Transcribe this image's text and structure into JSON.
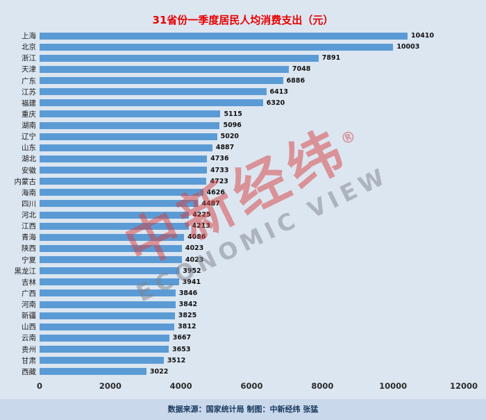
{
  "chart_data": {
    "type": "bar",
    "orientation": "horizontal",
    "title": "31省份一季度居民人均消费支出（元）",
    "categories": [
      "上海",
      "北京",
      "浙江",
      "天津",
      "广东",
      "江苏",
      "福建",
      "重庆",
      "湖南",
      "辽宁",
      "山东",
      "湖北",
      "安徽",
      "内蒙古",
      "海南",
      "四川",
      "河北",
      "江西",
      "青海",
      "陕西",
      "宁夏",
      "黑龙江",
      "吉林",
      "广西",
      "河南",
      "新疆",
      "山西",
      "云南",
      "贵州",
      "甘肃",
      "西藏"
    ],
    "values": [
      10410,
      10003,
      7891,
      7048,
      6886,
      6413,
      6320,
      5115,
      5096,
      5020,
      4887,
      4736,
      4733,
      4723,
      4626,
      4487,
      4225,
      4213,
      4086,
      4023,
      4023,
      3952,
      3941,
      3846,
      3842,
      3825,
      3812,
      3667,
      3653,
      3512,
      3022
    ],
    "xlabel": "",
    "ylabel": "",
    "xlim": [
      0,
      12000
    ],
    "xticks": [
      0,
      2000,
      4000,
      6000,
      8000,
      10000,
      12000
    ],
    "grid": false,
    "legend": "none",
    "value_labels": true
  },
  "footer": {
    "text": "数据来源：国家统计局  制图：中新经纬 张猛"
  },
  "watermark": {
    "brand": "中新经纬",
    "registered": "®",
    "subtitle": "ECONOMIC VIEW"
  },
  "colors": {
    "background": "#dce6f1",
    "bar": "#5b9bd5",
    "title": "#e60000",
    "footer_bg": "#c9d8ea",
    "footer_text": "#17375e"
  }
}
